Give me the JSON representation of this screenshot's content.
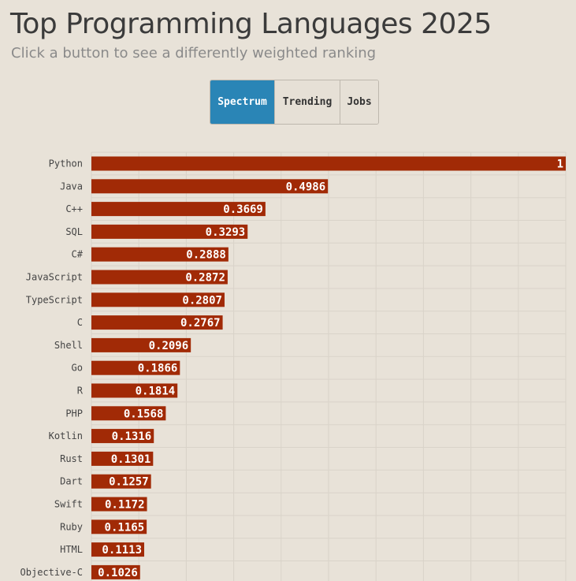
{
  "header": {
    "title": "Top Programming Languages 2025",
    "subtitle": "Click a button to see a differently weighted ranking"
  },
  "buttons": [
    {
      "label": "Spectrum",
      "active": true
    },
    {
      "label": "Trending",
      "active": false
    },
    {
      "label": "Jobs",
      "active": false
    }
  ],
  "colors": {
    "bar": "#a12a06",
    "active_button": "#2a85b6",
    "background": "#e8e2d8"
  },
  "chart_data": {
    "type": "bar",
    "orientation": "horizontal",
    "title": "Top Programming Languages 2025",
    "xlim": [
      0,
      1
    ],
    "grid": true,
    "categories": [
      "Python",
      "Java",
      "C++",
      "SQL",
      "C#",
      "JavaScript",
      "TypeScript",
      "C",
      "Shell",
      "Go",
      "R",
      "PHP",
      "Kotlin",
      "Rust",
      "Dart",
      "Swift",
      "Ruby",
      "HTML",
      "Objective-C"
    ],
    "values": [
      1,
      0.4986,
      0.3669,
      0.3293,
      0.2888,
      0.2872,
      0.2807,
      0.2767,
      0.2096,
      0.1866,
      0.1814,
      0.1568,
      0.1316,
      0.1301,
      0.1257,
      0.1172,
      0.1165,
      0.1113,
      0.1026
    ],
    "value_labels": [
      "1",
      "0.4986",
      "0.3669",
      "0.3293",
      "0.2888",
      "0.2872",
      "0.2807",
      "0.2767",
      "0.2096",
      "0.1866",
      "0.1814",
      "0.1568",
      "0.1316",
      "0.1301",
      "0.1257",
      "0.1172",
      "0.1165",
      "0.1113",
      "0.1026"
    ]
  }
}
